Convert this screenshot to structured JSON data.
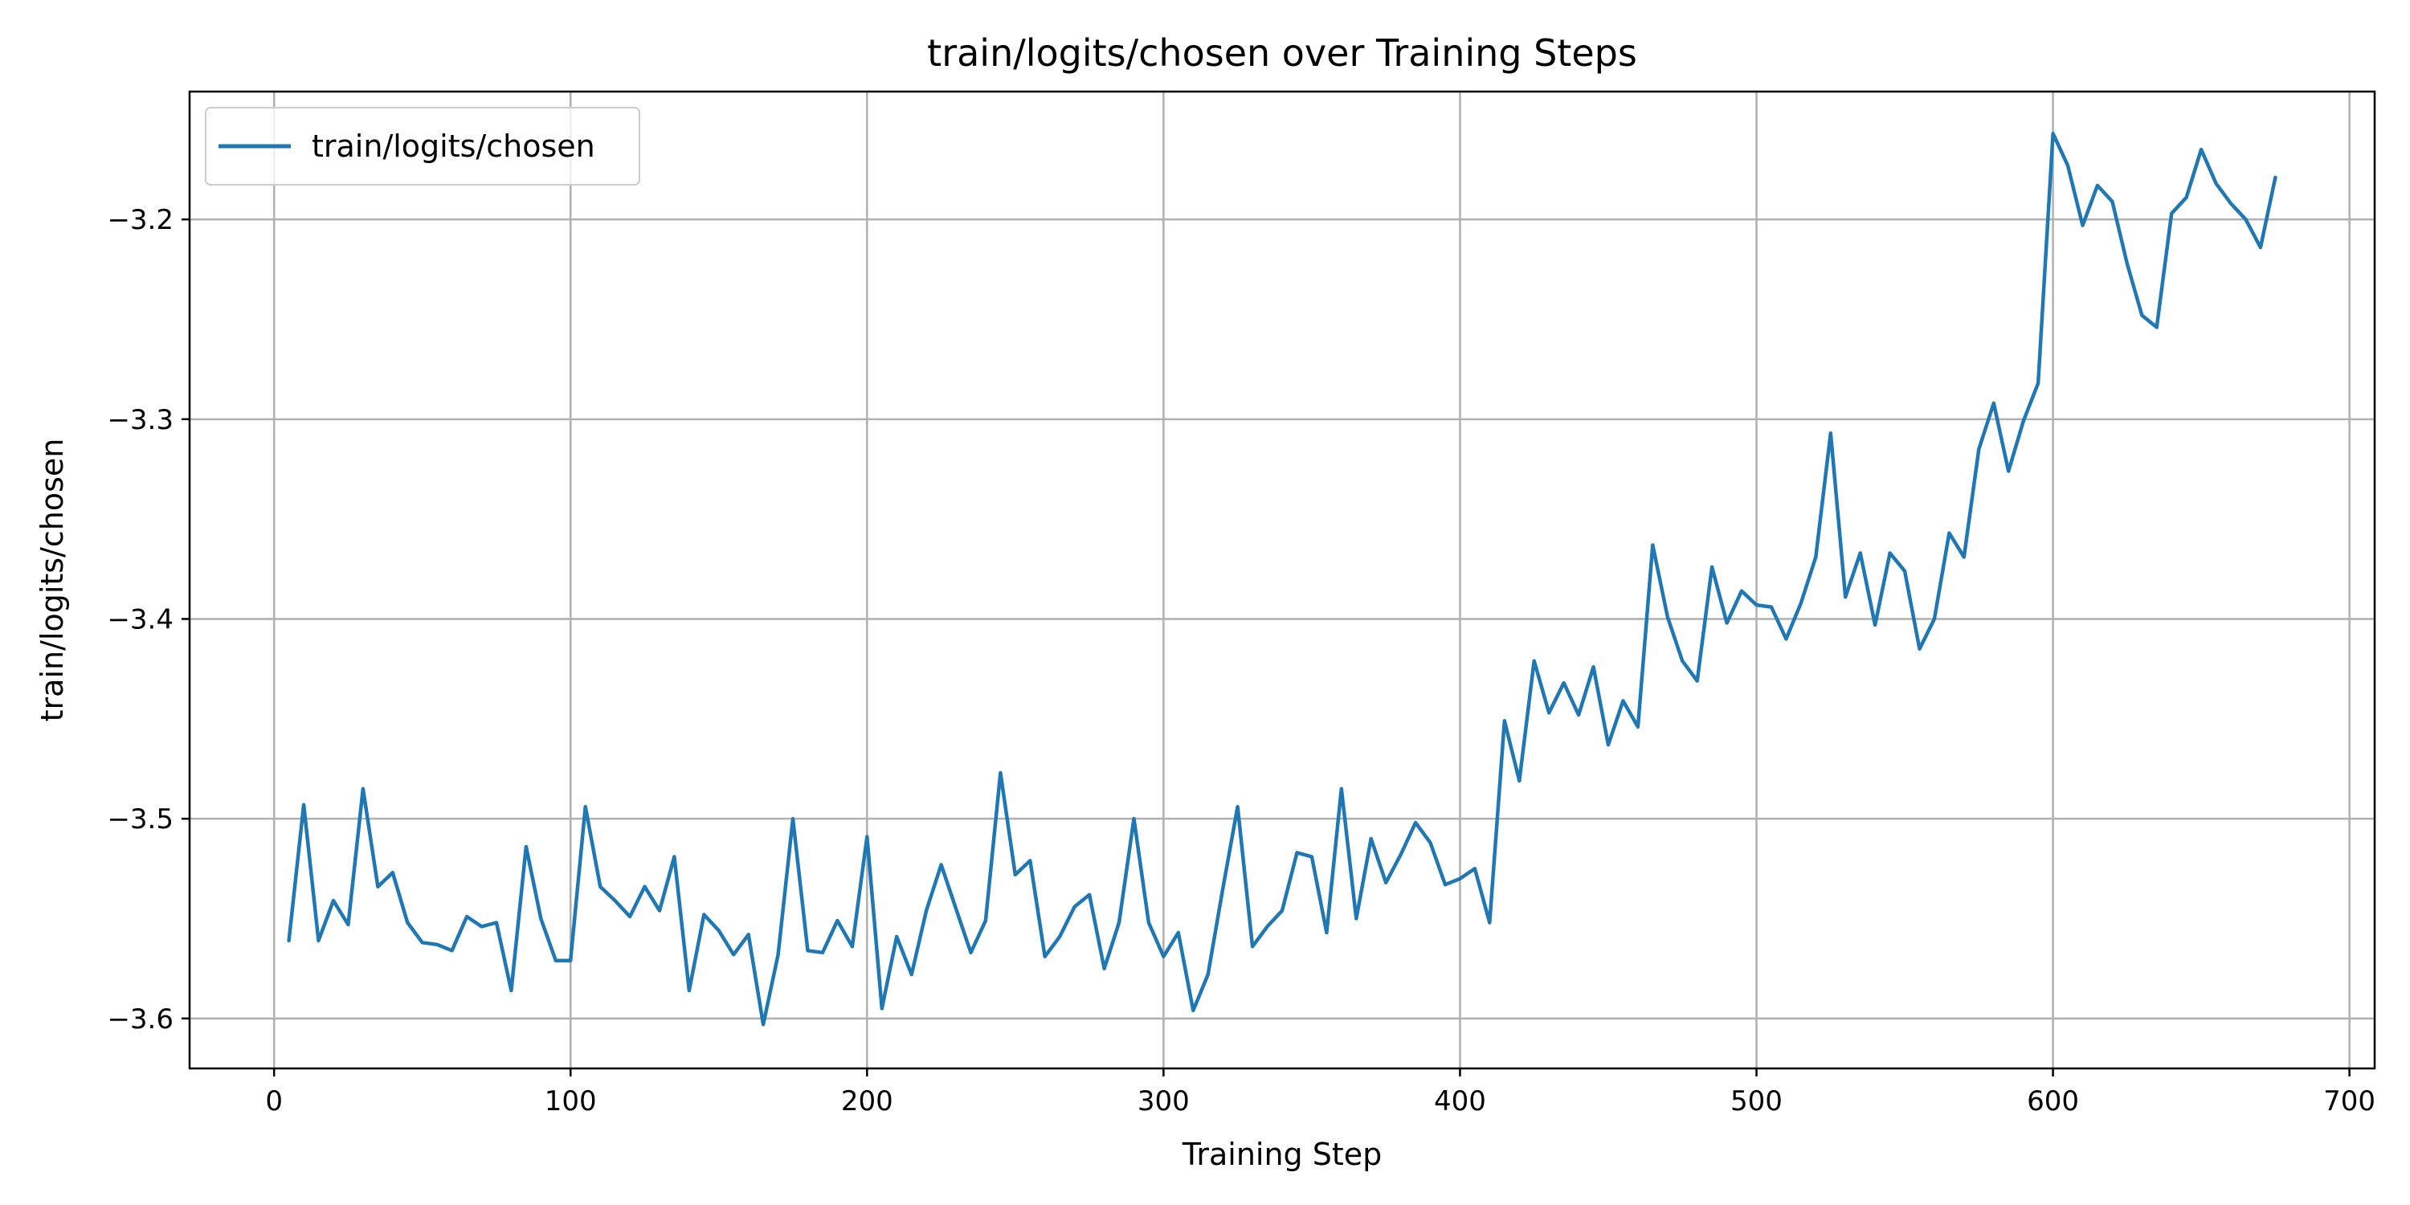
{
  "chart_data": {
    "type": "line",
    "title": "train/logits/chosen over Training Steps",
    "xlabel": "Training Step",
    "ylabel": "train/logits/chosen",
    "xlim": [
      -28.5,
      708.5
    ],
    "ylim": [
      -3.625,
      -3.136
    ],
    "xticks": [
      0,
      100,
      200,
      300,
      400,
      500,
      600,
      700
    ],
    "xtick_labels": [
      "0",
      "100",
      "200",
      "300",
      "400",
      "500",
      "600",
      "700"
    ],
    "yticks": [
      -3.6,
      -3.5,
      -3.4,
      -3.3,
      -3.2
    ],
    "ytick_labels": [
      "−3.6",
      "−3.5",
      "−3.4",
      "−3.3",
      "−3.2"
    ],
    "grid": true,
    "legend_position": "top-left",
    "series_color": "#1f77b4",
    "series": [
      {
        "name": "train/logits/chosen",
        "x": [
          5,
          10,
          15,
          20,
          25,
          30,
          35,
          40,
          45,
          50,
          55,
          60,
          65,
          70,
          75,
          80,
          85,
          90,
          95,
          100,
          105,
          110,
          115,
          120,
          125,
          130,
          135,
          140,
          145,
          150,
          155,
          160,
          165,
          170,
          175,
          180,
          185,
          190,
          195,
          200,
          205,
          210,
          215,
          220,
          225,
          230,
          235,
          240,
          245,
          250,
          255,
          260,
          265,
          270,
          275,
          280,
          285,
          290,
          295,
          300,
          305,
          310,
          315,
          320,
          325,
          330,
          335,
          340,
          345,
          350,
          355,
          360,
          365,
          370,
          375,
          380,
          385,
          390,
          395,
          400,
          405,
          410,
          415,
          420,
          425,
          430,
          435,
          440,
          445,
          450,
          455,
          460,
          465,
          470,
          475,
          480,
          485,
          490,
          495,
          500,
          505,
          510,
          515,
          520,
          525,
          530,
          535,
          540,
          545,
          550,
          555,
          560,
          565,
          570,
          575,
          580,
          585,
          590,
          595,
          600,
          605,
          610,
          615,
          620,
          625,
          630,
          635,
          640,
          645,
          650,
          655,
          660,
          665,
          670,
          675
        ],
        "values": [
          -3.561,
          -3.493,
          -3.561,
          -3.541,
          -3.553,
          -3.485,
          -3.534,
          -3.527,
          -3.552,
          -3.562,
          -3.563,
          -3.566,
          -3.549,
          -3.554,
          -3.552,
          -3.586,
          -3.514,
          -3.55,
          -3.571,
          -3.571,
          -3.494,
          -3.534,
          -3.541,
          -3.549,
          -3.534,
          -3.546,
          -3.519,
          -3.586,
          -3.548,
          -3.556,
          -3.568,
          -3.558,
          -3.603,
          -3.568,
          -3.5,
          -3.566,
          -3.567,
          -3.551,
          -3.564,
          -3.509,
          -3.595,
          -3.559,
          -3.578,
          -3.546,
          -3.523,
          -3.545,
          -3.567,
          -3.551,
          -3.477,
          -3.528,
          -3.521,
          -3.569,
          -3.559,
          -3.544,
          -3.538,
          -3.575,
          -3.552,
          -3.5,
          -3.552,
          -3.569,
          -3.557,
          -3.596,
          -3.578,
          -3.535,
          -3.494,
          -3.564,
          -3.554,
          -3.546,
          -3.517,
          -3.519,
          -3.557,
          -3.485,
          -3.55,
          -3.51,
          -3.532,
          -3.518,
          -3.502,
          -3.512,
          -3.533,
          -3.53,
          -3.525,
          -3.552,
          -3.451,
          -3.481,
          -3.421,
          -3.447,
          -3.432,
          -3.448,
          -3.424,
          -3.463,
          -3.441,
          -3.454,
          -3.363,
          -3.399,
          -3.421,
          -3.431,
          -3.374,
          -3.402,
          -3.386,
          -3.393,
          -3.394,
          -3.41,
          -3.392,
          -3.369,
          -3.307,
          -3.389,
          -3.367,
          -3.403,
          -3.367,
          -3.376,
          -3.415,
          -3.4,
          -3.357,
          -3.369,
          -3.315,
          -3.292,
          -3.326,
          -3.301,
          -3.282,
          -3.157,
          -3.173,
          -3.203,
          -3.183,
          -3.191,
          -3.222,
          -3.248,
          -3.254,
          -3.197,
          -3.189,
          -3.165,
          -3.182,
          -3.192,
          -3.2,
          -3.214,
          -3.179
        ]
      }
    ]
  }
}
